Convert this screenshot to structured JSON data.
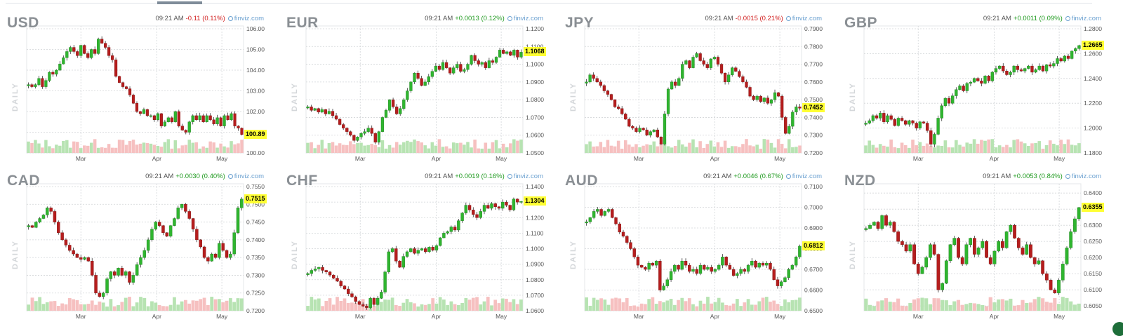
{
  "chart_data": [
    {
      "symbol": "USD",
      "type": "candlestick",
      "time": "09:21 AM",
      "change": "-0.11 (0.11%)",
      "direction": "down",
      "source": "finviz.com",
      "period_label": "DAILY",
      "x_ticks": [
        "Mar",
        "Apr",
        "May"
      ],
      "y_ticks": [
        "106.00",
        "105.00",
        "104.00",
        "103.00",
        "102.00",
        "101.00",
        "100.00"
      ],
      "ylim": [
        100.0,
        106.0
      ],
      "last_price": "100.89",
      "closes": [
        103.3,
        103.2,
        103.3,
        103.6,
        103.2,
        103.5,
        103.9,
        103.8,
        104.0,
        104.3,
        104.6,
        104.9,
        105.1,
        104.9,
        104.7,
        105.2,
        104.8,
        104.6,
        105.0,
        104.8,
        105.5,
        105.3,
        105.1,
        104.7,
        104.5,
        103.7,
        103.4,
        103.2,
        103.1,
        102.8,
        102.4,
        102.0,
        101.9,
        102.1,
        101.8,
        101.8,
        101.6,
        101.9,
        101.3,
        101.5,
        101.7,
        101.5,
        102.0,
        101.3,
        101.1,
        101.0,
        101.5,
        101.8,
        101.6,
        101.8,
        101.5,
        101.8,
        101.6,
        101.4,
        101.7,
        101.3,
        101.8,
        101.6,
        101.9,
        101.3,
        101.2,
        100.89
      ]
    },
    {
      "symbol": "EUR",
      "type": "candlestick",
      "time": "09:21 AM",
      "change": "+0.0013 (0.12%)",
      "direction": "up",
      "source": "finviz.com",
      "period_label": "DAILY",
      "x_ticks": [
        "Mar",
        "Apr",
        "May"
      ],
      "y_ticks": [
        "1.1200",
        "1.1100",
        "1.1000",
        "1.0900",
        "1.0800",
        "1.0700",
        "1.0600",
        "1.0500"
      ],
      "ylim": [
        1.05,
        1.12
      ],
      "last_price": "1.1068",
      "closes": [
        1.076,
        1.074,
        1.075,
        1.073,
        1.0745,
        1.072,
        1.0735,
        1.071,
        1.069,
        1.066,
        1.064,
        1.062,
        1.06,
        1.057,
        1.059,
        1.061,
        1.062,
        1.064,
        1.061,
        1.056,
        1.062,
        1.07,
        1.074,
        1.08,
        1.076,
        1.072,
        1.075,
        1.08,
        1.085,
        1.09,
        1.095,
        1.092,
        1.088,
        1.09,
        1.093,
        1.096,
        1.099,
        1.097,
        1.101,
        1.098,
        1.095,
        1.098,
        1.1,
        1.096,
        1.097,
        1.1,
        1.105,
        1.102,
        1.1,
        1.101,
        1.098,
        1.102,
        1.101,
        1.104,
        1.108,
        1.106,
        1.107,
        1.105,
        1.108,
        1.104,
        1.1068
      ]
    },
    {
      "symbol": "JPY",
      "type": "candlestick",
      "time": "09:21 AM",
      "change": "-0.0015 (0.21%)",
      "direction": "down",
      "source": "finviz.com",
      "period_label": "DAILY",
      "x_ticks": [
        "Mar",
        "Apr",
        "May"
      ],
      "y_ticks": [
        "0.7900",
        "0.7800",
        "0.7700",
        "0.7600",
        "0.7500",
        "0.7400",
        "0.7300",
        "0.7200"
      ],
      "ylim": [
        0.72,
        0.79
      ],
      "last_price": "0.7452",
      "closes": [
        0.76,
        0.764,
        0.762,
        0.76,
        0.758,
        0.755,
        0.753,
        0.75,
        0.746,
        0.745,
        0.742,
        0.739,
        0.735,
        0.734,
        0.732,
        0.734,
        0.733,
        0.73,
        0.732,
        0.733,
        0.729,
        0.725,
        0.742,
        0.756,
        0.76,
        0.758,
        0.762,
        0.77,
        0.772,
        0.768,
        0.774,
        0.776,
        0.772,
        0.77,
        0.768,
        0.773,
        0.774,
        0.77,
        0.765,
        0.76,
        0.764,
        0.768,
        0.766,
        0.763,
        0.76,
        0.757,
        0.752,
        0.75,
        0.752,
        0.749,
        0.751,
        0.748,
        0.75,
        0.754,
        0.752,
        0.74,
        0.731,
        0.735,
        0.743,
        0.746,
        0.7452
      ]
    },
    {
      "symbol": "GBP",
      "type": "candlestick",
      "time": "09:21 AM",
      "change": "+0.0011 (0.09%)",
      "direction": "up",
      "source": "finviz.com",
      "period_label": "DAILY",
      "x_ticks": [
        "Mar",
        "Apr",
        "May"
      ],
      "y_ticks": [
        "1.2800",
        "1.2600",
        "1.2400",
        "1.2200",
        "1.2000",
        "1.1800"
      ],
      "ylim": [
        1.18,
        1.28
      ],
      "last_price": "1.2665",
      "closes": [
        1.204,
        1.206,
        1.21,
        1.208,
        1.212,
        1.205,
        1.21,
        1.207,
        1.202,
        1.208,
        1.206,
        1.203,
        1.206,
        1.204,
        1.2,
        1.205,
        1.204,
        1.198,
        1.187,
        1.195,
        1.208,
        1.218,
        1.224,
        1.22,
        1.226,
        1.231,
        1.234,
        1.23,
        1.236,
        1.237,
        1.24,
        1.238,
        1.236,
        1.242,
        1.238,
        1.245,
        1.248,
        1.25,
        1.246,
        1.243,
        1.245,
        1.25,
        1.247,
        1.246,
        1.248,
        1.25,
        1.245,
        1.247,
        1.25,
        1.246,
        1.251,
        1.25,
        1.252,
        1.256,
        1.254,
        1.258,
        1.256,
        1.262,
        1.264,
        1.2665
      ]
    },
    {
      "symbol": "CAD",
      "type": "candlestick",
      "time": "09:21 AM",
      "change": "+0.0030 (0.40%)",
      "direction": "up",
      "source": "finviz.com",
      "period_label": "DAILY",
      "x_ticks": [
        "Mar",
        "Apr",
        "May"
      ],
      "y_ticks": [
        "0.7550",
        "0.7500",
        "0.7450",
        "0.7400",
        "0.7350",
        "0.7300",
        "0.7250",
        "0.7200"
      ],
      "ylim": [
        0.72,
        0.755
      ],
      "last_price": "0.7515",
      "closes": [
        0.744,
        0.7435,
        0.745,
        0.746,
        0.747,
        0.749,
        0.748,
        0.745,
        0.742,
        0.74,
        0.7385,
        0.737,
        0.736,
        0.735,
        0.7345,
        0.735,
        0.734,
        0.73,
        0.725,
        0.724,
        0.725,
        0.729,
        0.731,
        0.73,
        0.732,
        0.73,
        0.731,
        0.728,
        0.73,
        0.733,
        0.735,
        0.737,
        0.74,
        0.743,
        0.745,
        0.744,
        0.742,
        0.741,
        0.744,
        0.746,
        0.749,
        0.75,
        0.748,
        0.746,
        0.743,
        0.74,
        0.738,
        0.735,
        0.734,
        0.736,
        0.735,
        0.739,
        0.737,
        0.735,
        0.736,
        0.742,
        0.749,
        0.7515
      ]
    },
    {
      "symbol": "CHF",
      "type": "candlestick",
      "time": "09:21 AM",
      "change": "+0.0019 (0.16%)",
      "direction": "up",
      "source": "finviz.com",
      "period_label": "DAILY",
      "x_ticks": [
        "Mar",
        "Apr",
        "May"
      ],
      "y_ticks": [
        "1.1400",
        "1.1300",
        "1.1200",
        "1.1100",
        "1.1000",
        "1.0900",
        "1.0800",
        "1.0700",
        "1.0600"
      ],
      "ylim": [
        1.06,
        1.14
      ],
      "last_price": "1.1304",
      "closes": [
        1.084,
        1.086,
        1.087,
        1.088,
        1.086,
        1.085,
        1.083,
        1.081,
        1.079,
        1.076,
        1.074,
        1.071,
        1.069,
        1.066,
        1.064,
        1.063,
        1.062,
        1.068,
        1.064,
        1.068,
        1.072,
        1.085,
        1.098,
        1.1,
        1.092,
        1.088,
        1.095,
        1.098,
        1.1,
        1.097,
        1.099,
        1.1,
        1.098,
        1.101,
        1.099,
        1.102,
        1.107,
        1.11,
        1.111,
        1.114,
        1.112,
        1.118,
        1.123,
        1.128,
        1.125,
        1.122,
        1.12,
        1.124,
        1.128,
        1.126,
        1.129,
        1.127,
        1.126,
        1.13,
        1.128,
        1.125,
        1.132,
        1.13,
        1.1304
      ]
    },
    {
      "symbol": "AUD",
      "type": "candlestick",
      "time": "09:21 AM",
      "change": "+0.0046 (0.67%)",
      "direction": "up",
      "source": "finviz.com",
      "period_label": "DAILY",
      "x_ticks": [
        "Mar",
        "Apr",
        "May"
      ],
      "y_ticks": [
        "0.7100",
        "0.7000",
        "0.6900",
        "0.6800",
        "0.6700",
        "0.6600",
        "0.6500"
      ],
      "ylim": [
        0.65,
        0.71
      ],
      "last_price": "0.6812",
      "closes": [
        0.693,
        0.695,
        0.698,
        0.699,
        0.696,
        0.698,
        0.699,
        0.695,
        0.692,
        0.688,
        0.686,
        0.683,
        0.68,
        0.676,
        0.672,
        0.671,
        0.67,
        0.673,
        0.672,
        0.674,
        0.66,
        0.662,
        0.665,
        0.669,
        0.672,
        0.67,
        0.674,
        0.672,
        0.669,
        0.67,
        0.668,
        0.672,
        0.67,
        0.671,
        0.669,
        0.67,
        0.672,
        0.676,
        0.672,
        0.67,
        0.667,
        0.668,
        0.67,
        0.669,
        0.672,
        0.674,
        0.671,
        0.673,
        0.672,
        0.673,
        0.67,
        0.665,
        0.662,
        0.664,
        0.666,
        0.67,
        0.672,
        0.676,
        0.6812
      ]
    },
    {
      "symbol": "NZD",
      "type": "candlestick",
      "time": "09:21 AM",
      "change": "+0.0053 (0.84%)",
      "direction": "up",
      "source": "finviz.com",
      "period_label": "DAILY",
      "x_ticks": [
        "Mar",
        "Apr",
        "May"
      ],
      "y_ticks": [
        "0.6400",
        "0.6350",
        "0.6300",
        "0.6250",
        "0.6200",
        "0.6150",
        "0.6100",
        "0.6050"
      ],
      "ylim": [
        0.6035,
        0.642
      ],
      "last_price": "0.6355",
      "closes": [
        0.629,
        0.63,
        0.631,
        0.629,
        0.633,
        0.63,
        0.631,
        0.628,
        0.625,
        0.624,
        0.622,
        0.624,
        0.618,
        0.615,
        0.617,
        0.62,
        0.624,
        0.621,
        0.61,
        0.612,
        0.619,
        0.624,
        0.626,
        0.62,
        0.618,
        0.624,
        0.626,
        0.621,
        0.623,
        0.625,
        0.62,
        0.618,
        0.622,
        0.625,
        0.623,
        0.628,
        0.63,
        0.626,
        0.623,
        0.621,
        0.624,
        0.62,
        0.618,
        0.619,
        0.615,
        0.613,
        0.61,
        0.609,
        0.613,
        0.618,
        0.623,
        0.628,
        0.632,
        0.6355
      ]
    }
  ]
}
